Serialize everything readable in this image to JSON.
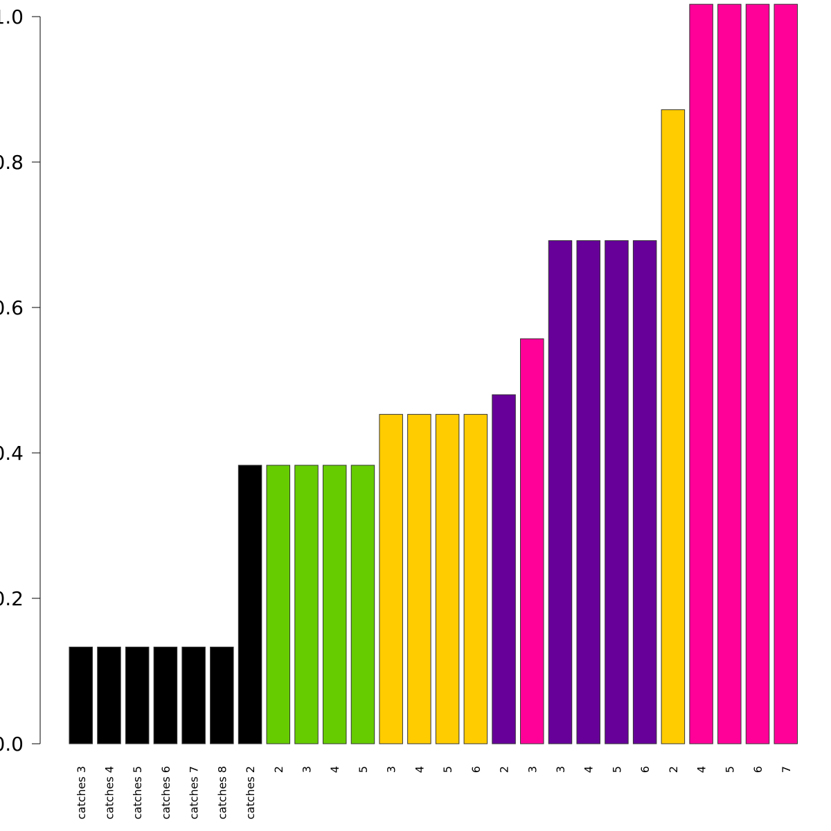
{
  "chart_data": {
    "type": "bar",
    "title": "",
    "xlabel": "",
    "ylabel": "",
    "ylim": [
      0,
      1.0
    ],
    "yticks": [
      {
        "value": 0.0,
        "label": "0.0"
      },
      {
        "value": 0.2,
        "label": "0.2"
      },
      {
        "value": 0.4,
        "label": "0.4"
      },
      {
        "value": 0.6,
        "label": "0.6"
      },
      {
        "value": 0.8,
        "label": "0.8"
      },
      {
        "value": 1.0,
        "label": "1.0"
      }
    ],
    "grid": false,
    "categories": [
      "catches 3",
      "catches 4",
      "catches 5",
      "catches 6",
      "catches 7",
      "catches 8",
      "catches 2",
      "2",
      "3",
      "4",
      "5",
      "3",
      "4",
      "5",
      "6",
      "2",
      "3",
      "3",
      "4",
      "5",
      "6",
      "2",
      "4",
      "5",
      "6",
      "7"
    ],
    "values": [
      0.133,
      0.133,
      0.133,
      0.133,
      0.133,
      0.133,
      0.383,
      0.383,
      0.383,
      0.383,
      0.383,
      0.453,
      0.453,
      0.453,
      0.453,
      0.48,
      0.557,
      0.692,
      0.692,
      0.692,
      0.692,
      0.872,
      1.017,
      1.017,
      1.017,
      1.017
    ],
    "bar_colors": [
      "#000000",
      "#000000",
      "#000000",
      "#000000",
      "#000000",
      "#000000",
      "#000000",
      "#66cc00",
      "#66cc00",
      "#66cc00",
      "#66cc00",
      "#ffcc00",
      "#ffcc00",
      "#ffcc00",
      "#ffcc00",
      "#660099",
      "#ff0099",
      "#660099",
      "#660099",
      "#660099",
      "#660099",
      "#ffcc00",
      "#ff0099",
      "#ff0099",
      "#ff0099",
      "#ff0099"
    ]
  }
}
